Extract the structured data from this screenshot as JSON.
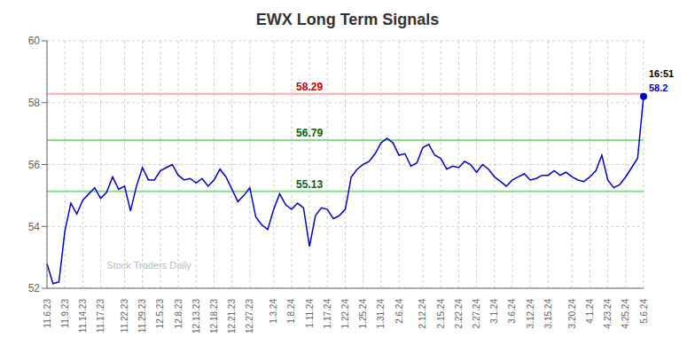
{
  "chart_data": {
    "type": "line",
    "title": "EWX Long Term Signals",
    "color": "#0000cc",
    "grid": true,
    "ylim": [
      52,
      60
    ],
    "yticks": [
      52,
      54,
      56,
      58,
      60
    ],
    "categories": [
      "11.6.23",
      null,
      null,
      "11.9.23",
      null,
      null,
      "11.14.23",
      null,
      null,
      "11.17.23",
      null,
      null,
      null,
      "11.22.23",
      null,
      null,
      "11.29.23",
      null,
      null,
      "12.5.23",
      null,
      null,
      "12.8.23",
      null,
      null,
      "12.13.23",
      null,
      null,
      "12.18.23",
      null,
      null,
      "12.21.23",
      null,
      null,
      "12.27.23",
      null,
      null,
      null,
      "1.3.24",
      null,
      null,
      "1.8.24",
      null,
      null,
      "1.11.24",
      null,
      null,
      "1.17.24",
      null,
      null,
      "1.22.24",
      null,
      null,
      "1.25.24",
      null,
      null,
      "1.31.24",
      null,
      null,
      "2.6.24",
      null,
      null,
      null,
      "2.12.24",
      null,
      null,
      "2.15.24",
      null,
      null,
      "2.22.24",
      null,
      null,
      "2.27.24",
      null,
      null,
      "3.1.24",
      null,
      null,
      "3.6.24",
      null,
      null,
      "3.12.24",
      null,
      null,
      "3.15.24",
      null,
      null,
      null,
      "3.20.24",
      null,
      null,
      "4.1.24",
      null,
      null,
      "4.23.24",
      null,
      null,
      "4.25.24",
      null,
      null,
      "5.6.24"
    ],
    "values": [
      52.8,
      52.15,
      52.2,
      53.85,
      54.75,
      54.4,
      54.85,
      55.05,
      55.25,
      54.9,
      55.1,
      55.6,
      55.2,
      55.3,
      54.5,
      55.3,
      55.9,
      55.5,
      55.5,
      55.8,
      55.9,
      56.0,
      55.65,
      55.5,
      55.55,
      55.4,
      55.55,
      55.3,
      55.5,
      55.85,
      55.6,
      55.2,
      54.8,
      55.0,
      55.25,
      54.3,
      54.05,
      53.9,
      54.55,
      55.05,
      54.7,
      54.55,
      54.75,
      54.6,
      53.35,
      54.35,
      54.6,
      54.55,
      54.25,
      54.35,
      54.55,
      55.6,
      55.85,
      56.0,
      56.1,
      56.35,
      56.7,
      56.85,
      56.7,
      56.3,
      56.35,
      55.95,
      56.05,
      56.55,
      56.65,
      56.3,
      56.2,
      55.85,
      55.95,
      55.9,
      56.1,
      56.0,
      55.75,
      56.0,
      55.85,
      55.6,
      55.45,
      55.3,
      55.5,
      55.6,
      55.7,
      55.5,
      55.55,
      55.65,
      55.65,
      55.8,
      55.65,
      55.75,
      55.6,
      55.5,
      55.45,
      55.6,
      55.8,
      56.3,
      55.5,
      55.25,
      55.35,
      55.6,
      55.9,
      56.2,
      58.2
    ],
    "reference_lines": [
      {
        "value": 58.29,
        "color": "#ffaaaa",
        "label": "58.29",
        "label_color": "#cc0000"
      },
      {
        "value": 56.79,
        "color": "#88dd88",
        "label": "56.79",
        "label_color": "#006600"
      },
      {
        "value": 55.13,
        "color": "#88dd88",
        "label": "55.13",
        "label_color": "#006600"
      }
    ],
    "last_point_labels": [
      {
        "text": "16:51",
        "color": "#000000"
      },
      {
        "text": "58.2",
        "color": "#0000cc"
      }
    ],
    "watermark": "Stock Traders Daily",
    "watermark_color": "#bbbbbb"
  }
}
